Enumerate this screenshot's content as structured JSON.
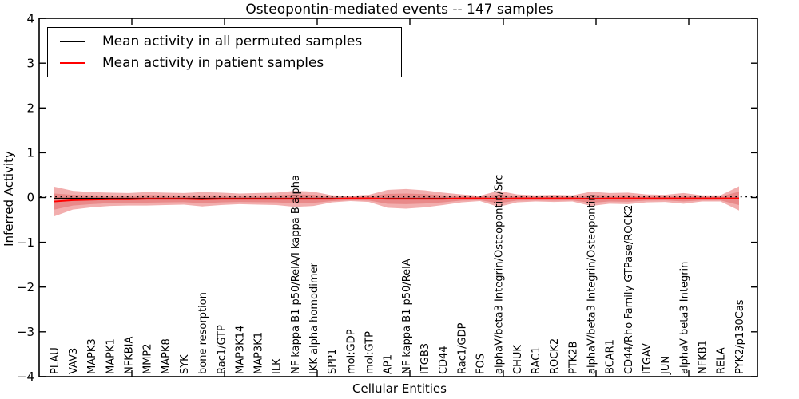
{
  "title": "Osteopontin-mediated events -- 147 samples",
  "legend": {
    "items": [
      {
        "label": "Mean activity in all permuted samples",
        "color": "#000000"
      },
      {
        "label": "Mean activity in patient samples",
        "color": "#ff0000"
      }
    ]
  },
  "axes": {
    "xlabel": "Cellular Entities",
    "ylabel": "Inferred Activity",
    "yticks": [
      4,
      3,
      2,
      1,
      0,
      -1,
      -2,
      -3,
      -4
    ],
    "ylim": [
      -4,
      4
    ]
  },
  "chart_data": {
    "type": "line",
    "title": "Osteopontin-mediated events -- 147 samples",
    "xlabel": "Cellular Entities",
    "ylabel": "Inferred Activity",
    "ylim": [
      -4,
      4
    ],
    "grid": false,
    "legend_position": "upper left",
    "categories": [
      "PLAU",
      "VAV3",
      "MAPK3",
      "MAPK1",
      "NFKBIA",
      "MMP2",
      "MAPK8",
      "SYK",
      "bone resorption",
      "Rac1/GTP",
      "MAP3K14",
      "MAP3K1",
      "ILK",
      "NF kappa B1 p50/RelA/I kappa B alpha",
      "IKK alpha homodimer",
      "SPP1",
      "mol:GDP",
      "mol:GTP",
      "AP1",
      "NF kappa B1 p50/RelA",
      "ITGB3",
      "CD44",
      "Rac1/GDP",
      "FOS",
      "alphaV/beta3 Integrin/Osteopontin/Src",
      "CHUK",
      "RAC1",
      "ROCK2",
      "PTK2B",
      "alphaV/beta3 Integrin/Osteopontin",
      "BCAR1",
      "CD44/Rho Family GTPase/ROCK2",
      "ITGAV",
      "JUN",
      "alphaV beta3 Integrin",
      "NFKB1",
      "RELA",
      "PYK2/p130Cas"
    ],
    "series": [
      {
        "name": "Mean activity in all permuted samples",
        "color": "#000000",
        "style": "solid",
        "values": [
          -0.02,
          -0.02,
          -0.02,
          -0.02,
          -0.02,
          -0.02,
          -0.02,
          -0.02,
          -0.02,
          -0.02,
          -0.02,
          -0.02,
          -0.02,
          -0.02,
          -0.02,
          -0.02,
          -0.02,
          -0.02,
          -0.02,
          -0.02,
          -0.02,
          -0.02,
          -0.02,
          -0.02,
          -0.02,
          -0.02,
          -0.02,
          -0.02,
          -0.02,
          -0.02,
          -0.02,
          -0.02,
          -0.02,
          -0.02,
          -0.02,
          -0.02,
          -0.02,
          -0.02
        ]
      },
      {
        "name": "Mean activity in patient samples",
        "color": "#ff0000",
        "style": "solid",
        "values": [
          -0.09,
          -0.06,
          -0.05,
          -0.04,
          -0.04,
          -0.03,
          -0.03,
          -0.03,
          -0.04,
          -0.03,
          -0.03,
          -0.03,
          -0.03,
          -0.03,
          -0.03,
          -0.03,
          -0.02,
          -0.02,
          -0.03,
          -0.03,
          -0.03,
          -0.03,
          -0.02,
          -0.02,
          -0.03,
          -0.02,
          -0.02,
          -0.02,
          -0.02,
          -0.03,
          -0.02,
          -0.02,
          -0.02,
          -0.02,
          -0.02,
          -0.02,
          -0.02,
          -0.02
        ]
      }
    ],
    "bands": [
      {
        "name": "patient-band-outer",
        "center": "Mean activity in patient samples",
        "fill": "#f2aeae",
        "halfwidths": [
          0.33,
          0.21,
          0.17,
          0.15,
          0.14,
          0.15,
          0.14,
          0.13,
          0.16,
          0.14,
          0.12,
          0.13,
          0.14,
          0.18,
          0.16,
          0.08,
          0.06,
          0.08,
          0.2,
          0.22,
          0.19,
          0.14,
          0.09,
          0.06,
          0.18,
          0.09,
          0.07,
          0.08,
          0.07,
          0.16,
          0.12,
          0.13,
          0.09,
          0.08,
          0.12,
          0.07,
          0.07,
          0.27
        ]
      },
      {
        "name": "patient-band-inner",
        "center": "Mean activity in patient samples",
        "fill": "#e98989",
        "halfwidths": [
          0.18,
          0.12,
          0.1,
          0.085,
          0.08,
          0.085,
          0.08,
          0.075,
          0.09,
          0.08,
          0.07,
          0.075,
          0.08,
          0.1,
          0.09,
          0.05,
          0.04,
          0.05,
          0.11,
          0.12,
          0.105,
          0.08,
          0.05,
          0.04,
          0.1,
          0.05,
          0.045,
          0.05,
          0.045,
          0.09,
          0.07,
          0.075,
          0.05,
          0.045,
          0.07,
          0.045,
          0.045,
          0.15
        ]
      },
      {
        "name": "permuted-band",
        "center": "Mean activity in all permuted samples",
        "fill": "#d9d9d9",
        "halfwidth": 0.05
      }
    ],
    "zero_line": {
      "value": 0,
      "style": "dotted",
      "color": "#000000"
    }
  }
}
